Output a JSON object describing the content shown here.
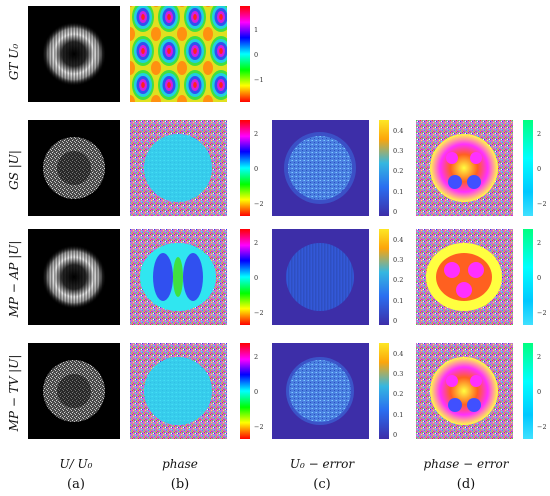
{
  "row_labels": [
    "GT U₀",
    "GS |U|",
    "MP − AP |U|",
    "MP − TV |U|"
  ],
  "column_labels": [
    "U/ U₀",
    "phase",
    "U₀ − error",
    "phase − error"
  ],
  "column_letters": [
    "(a)",
    "(b)",
    "(c)",
    "(d)"
  ],
  "colorbars": {
    "phase_gt": [
      "1",
      "0",
      "−1"
    ],
    "phase": [
      "2",
      "0",
      "−2"
    ],
    "error": [
      "0.4",
      "0.3",
      "0.2",
      "0.1",
      "0"
    ],
    "phase_error": [
      "2",
      "0",
      "−2"
    ]
  },
  "colors": {
    "hsv": [
      "#ff0000",
      "#ff00ff",
      "#0000ff",
      "#00ffff",
      "#00ff00",
      "#ffff00",
      "#ff0000"
    ],
    "parula": [
      "#fde725",
      "#fca50a",
      "#35b7e0",
      "#2a6ef0",
      "#3d2ea8"
    ],
    "phase_error_bar": [
      "#00ff80",
      "#00ffff",
      "#00c8ff",
      "#40e0ff"
    ]
  }
}
